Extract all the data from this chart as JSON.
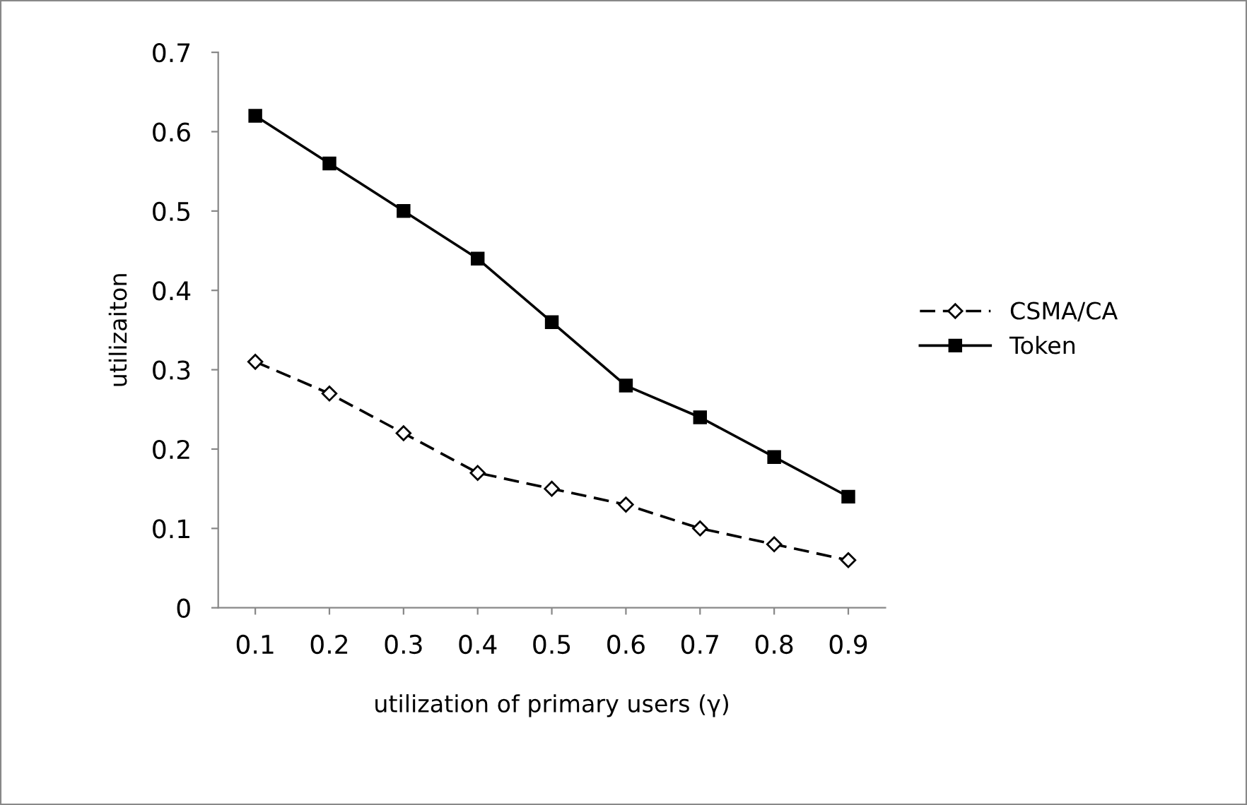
{
  "chart_data": {
    "type": "line",
    "xlabel": "utilization of primary users (γ)",
    "ylabel": "utilizaiton",
    "categories": [
      "0.1",
      "0.2",
      "0.3",
      "0.4",
      "0.5",
      "0.6",
      "0.7",
      "0.8",
      "0.9"
    ],
    "series": [
      {
        "name": "CSMA/CA",
        "color": "#000000",
        "marker": "diamond",
        "line_style": "dashed",
        "values": [
          0.31,
          0.27,
          0.22,
          0.17,
          0.15,
          0.13,
          0.1,
          0.08,
          0.06
        ]
      },
      {
        "name": "Token",
        "color": "#000000",
        "marker": "square",
        "line_style": "solid",
        "values": [
          0.62,
          0.56,
          0.5,
          0.44,
          0.36,
          0.28,
          0.24,
          0.19,
          0.14
        ]
      }
    ],
    "ylim": [
      0,
      0.7
    ],
    "yticks": [
      0,
      0.1,
      0.2,
      0.3,
      0.4,
      0.5,
      0.6,
      0.7
    ],
    "grid": false,
    "legend": "right"
  }
}
